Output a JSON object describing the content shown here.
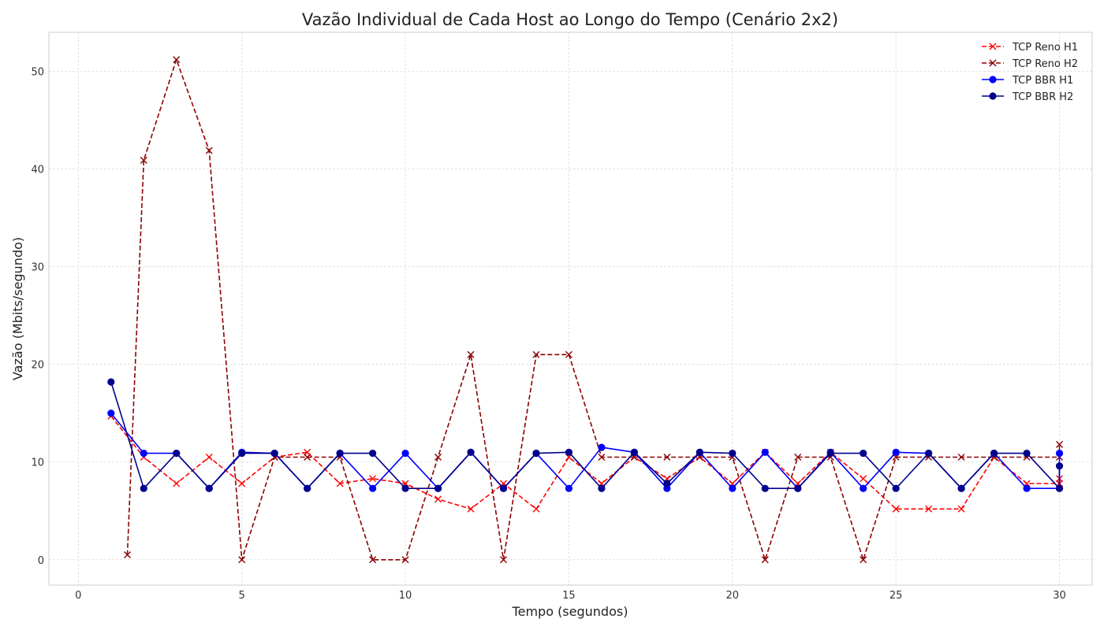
{
  "chart_data": {
    "type": "line",
    "title": "Vazão Individual de Cada Host ao Longo do Tempo (Cenário 2x2)",
    "xlabel": "Tempo (segundos)",
    "ylabel": "Vazão (Mbits/segundo)",
    "xlim": [
      -0.9,
      31.0
    ],
    "ylim": [
      -2.6,
      54.0
    ],
    "xticks": [
      0,
      5,
      10,
      15,
      20,
      25,
      30
    ],
    "yticks": [
      0,
      10,
      20,
      30,
      40,
      50
    ],
    "grid": true,
    "legend_position": "top-right",
    "series": [
      {
        "name": "TCP Reno H1",
        "color": "#ff0000",
        "line_style": "dashed",
        "marker": "x",
        "x": [
          1,
          2,
          3,
          4,
          5,
          6,
          7,
          8,
          9,
          10,
          11,
          12,
          13,
          14,
          15,
          16,
          17,
          18,
          19,
          20,
          21,
          22,
          23,
          24,
          25,
          26,
          27,
          28,
          29,
          30,
          30
        ],
        "y": [
          14.7,
          10.5,
          7.8,
          10.5,
          7.8,
          10.5,
          11.0,
          7.8,
          8.3,
          7.8,
          6.2,
          5.2,
          7.8,
          5.2,
          10.5,
          7.8,
          10.5,
          8.3,
          10.5,
          7.8,
          11.0,
          7.8,
          11.0,
          8.3,
          5.2,
          5.2,
          5.2,
          10.5,
          7.8,
          7.8,
          8.3
        ]
      },
      {
        "name": "TCP Reno H2",
        "color": "#8b0000",
        "line_style": "dashed",
        "marker": "x",
        "x": [
          1.5,
          2,
          3,
          4,
          5,
          6,
          7,
          8,
          9,
          10,
          11,
          12,
          13,
          14,
          15,
          16,
          17,
          18,
          19,
          20,
          21,
          22,
          23,
          24,
          25,
          26,
          27,
          28,
          29,
          30,
          30
        ],
        "y": [
          0.5,
          40.9,
          51.2,
          41.9,
          0.0,
          10.5,
          10.5,
          10.5,
          0.0,
          0.0,
          10.5,
          21.0,
          0.0,
          21.0,
          21.0,
          10.5,
          10.5,
          10.5,
          10.5,
          10.5,
          0.0,
          10.5,
          10.5,
          0.0,
          10.5,
          10.5,
          10.5,
          10.5,
          10.5,
          10.5,
          11.8
        ]
      },
      {
        "name": "TCP BBR H1",
        "color": "#0000ff",
        "line_style": "solid",
        "marker": "o",
        "x": [
          1,
          2,
          3,
          4,
          5,
          6,
          7,
          8,
          9,
          10,
          11,
          12,
          13,
          14,
          15,
          16,
          17,
          18,
          19,
          20,
          21,
          22,
          23,
          24,
          25,
          26,
          27,
          28,
          29,
          30,
          30
        ],
        "y": [
          15.0,
          10.9,
          10.9,
          7.3,
          11.0,
          10.9,
          7.3,
          10.9,
          7.3,
          10.9,
          7.3,
          11.0,
          7.3,
          10.9,
          7.3,
          11.5,
          11.0,
          7.3,
          11.0,
          7.3,
          11.0,
          7.3,
          11.0,
          7.3,
          11.0,
          10.9,
          7.3,
          10.9,
          7.3,
          7.3,
          10.9
        ]
      },
      {
        "name": "TCP BBR H2",
        "color": "#00008b",
        "line_style": "solid",
        "marker": "o",
        "x": [
          1,
          2,
          3,
          4,
          5,
          6,
          7,
          8,
          9,
          10,
          11,
          12,
          13,
          14,
          15,
          16,
          17,
          18,
          19,
          20,
          21,
          22,
          23,
          24,
          25,
          26,
          27,
          28,
          29,
          30,
          30
        ],
        "y": [
          18.2,
          7.3,
          10.9,
          7.3,
          10.9,
          10.9,
          7.3,
          10.9,
          10.9,
          7.3,
          7.3,
          11.0,
          7.3,
          10.9,
          11.0,
          7.3,
          11.0,
          7.8,
          11.0,
          10.9,
          7.3,
          7.3,
          10.9,
          10.9,
          7.3,
          10.9,
          7.3,
          10.9,
          10.9,
          7.3,
          9.6
        ]
      }
    ]
  }
}
